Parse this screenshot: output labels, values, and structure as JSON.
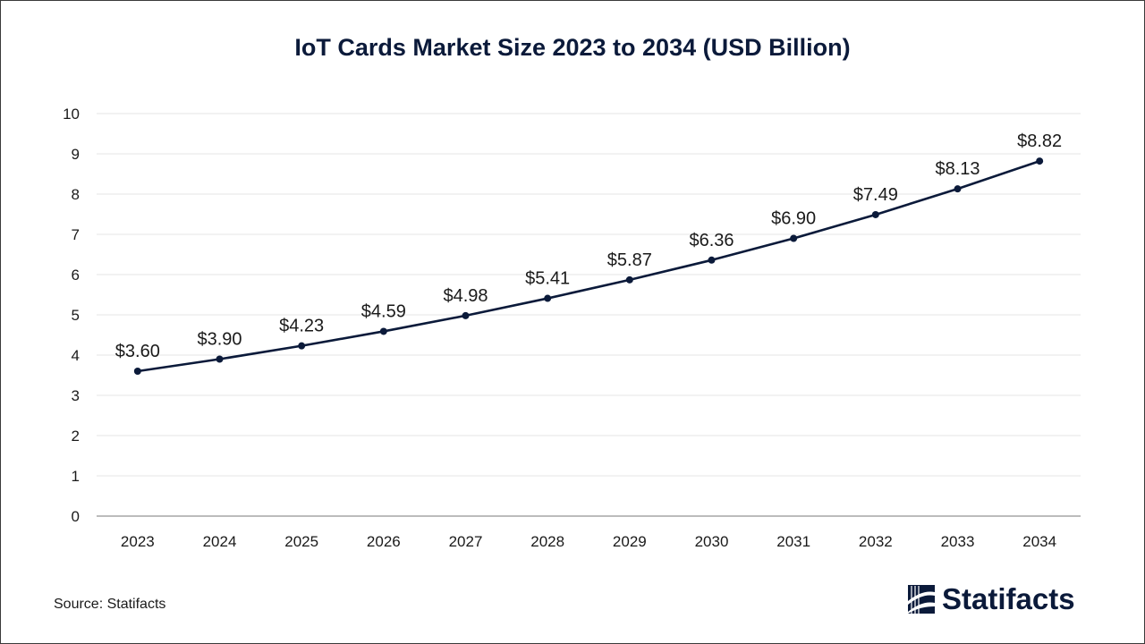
{
  "chart_data": {
    "type": "line",
    "title": "IoT Cards Market Size 2023 to 2034 (USD Billion)",
    "xlabel": "",
    "ylabel": "",
    "categories": [
      "2023",
      "2024",
      "2025",
      "2026",
      "2027",
      "2028",
      "2029",
      "2030",
      "2031",
      "2032",
      "2033",
      "2034"
    ],
    "series": [
      {
        "name": "IoT Cards Market Size",
        "values": [
          3.6,
          3.9,
          4.23,
          4.59,
          4.98,
          5.41,
          5.87,
          6.36,
          6.9,
          7.49,
          8.13,
          8.82
        ],
        "labels": [
          "$3.60",
          "$3.90",
          "$4.23",
          "$4.59",
          "$4.98",
          "$5.41",
          "$5.87",
          "$6.36",
          "$6.90",
          "$7.49",
          "$8.13",
          "$8.82"
        ]
      }
    ],
    "ylim": [
      0,
      10
    ],
    "yticks": [
      "0",
      "1",
      "2",
      "3",
      "4",
      "5",
      "6",
      "7",
      "8",
      "9",
      "10"
    ],
    "grid": true,
    "legend": "none"
  },
  "footer": {
    "source": "Source: Statifacts",
    "brand": "Statifacts"
  },
  "colors": {
    "line": "#0b1a3a",
    "grid": "#e6e6e6",
    "axis": "#a6a6a6",
    "text": "#1a1a1a"
  }
}
